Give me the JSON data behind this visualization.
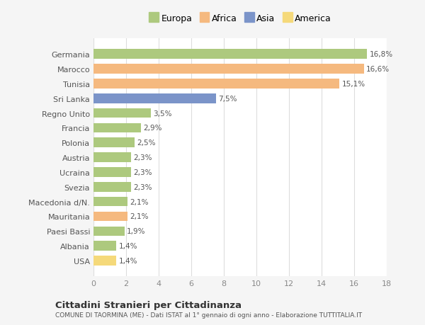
{
  "categories": [
    "Germania",
    "Marocco",
    "Tunisia",
    "Sri Lanka",
    "Regno Unito",
    "Francia",
    "Polonia",
    "Austria",
    "Ucraina",
    "Svezia",
    "Macedonia d/N.",
    "Mauritania",
    "Paesi Bassi",
    "Albania",
    "USA"
  ],
  "values": [
    16.8,
    16.6,
    15.1,
    7.5,
    3.5,
    2.9,
    2.5,
    2.3,
    2.3,
    2.3,
    2.1,
    2.1,
    1.9,
    1.4,
    1.4
  ],
  "labels": [
    "16,8%",
    "16,6%",
    "15,1%",
    "7,5%",
    "3,5%",
    "2,9%",
    "2,5%",
    "2,3%",
    "2,3%",
    "2,3%",
    "2,1%",
    "2,1%",
    "1,9%",
    "1,4%",
    "1,4%"
  ],
  "colors": [
    "#adc97e",
    "#f5b97f",
    "#f5b97f",
    "#7b94c9",
    "#adc97e",
    "#adc97e",
    "#adc97e",
    "#adc97e",
    "#adc97e",
    "#adc97e",
    "#adc97e",
    "#f5b97f",
    "#adc97e",
    "#adc97e",
    "#f5d97a"
  ],
  "legend_labels": [
    "Europa",
    "Africa",
    "Asia",
    "America"
  ],
  "legend_colors": [
    "#adc97e",
    "#f5b97f",
    "#7b94c9",
    "#f5d97a"
  ],
  "xlim": [
    0,
    18
  ],
  "xticks": [
    0,
    2,
    4,
    6,
    8,
    10,
    12,
    14,
    16,
    18
  ],
  "title": "Cittadini Stranieri per Cittadinanza",
  "subtitle": "COMUNE DI TAORMINA (ME) - Dati ISTAT al 1° gennaio di ogni anno - Elaborazione TUTTITALIA.IT",
  "plot_bg_color": "#ffffff",
  "fig_bg_color": "#f5f5f5",
  "bar_height": 0.65,
  "grid_color": "#dddddd"
}
